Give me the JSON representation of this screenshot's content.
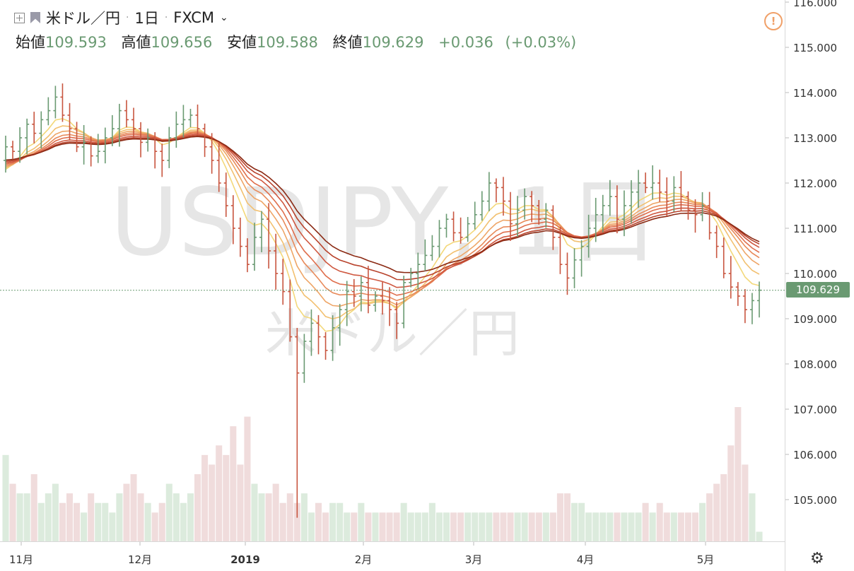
{
  "header": {
    "symbol_name": "米ドル／円",
    "interval": "1日",
    "source": "FXCM",
    "ohlc": {
      "open_label": "始値",
      "open": "109.593",
      "high_label": "高値",
      "high": "109.656",
      "low_label": "安値",
      "low": "109.588",
      "close_label": "終値",
      "close": "109.629",
      "change": "+0.036",
      "change_pct": "(+0.03%)"
    }
  },
  "watermark": {
    "line1": "USDJPY, 1日",
    "line2": "米ドル／円"
  },
  "last_price_label": "109.629",
  "colors": {
    "up": "#6a9a72",
    "down": "#c8553f",
    "ribbon_fast": "#f3d87a",
    "ribbon_slow": "#8b2a14"
  },
  "icons": {
    "add": "plus-square-icon",
    "flag": "flag-icon",
    "warning": "warning-circle-icon",
    "settings": "gear-icon",
    "dropdown": "chevron-down-icon"
  },
  "chart_data": {
    "type": "ohlc",
    "title": "USDJPY, 1日",
    "ylim": [
      104.2,
      116.0
    ],
    "y_ticks": [
      "116.000",
      "115.000",
      "114.000",
      "113.000",
      "112.000",
      "111.000",
      "110.000",
      "109.000",
      "108.000",
      "107.000",
      "106.000",
      "105.000"
    ],
    "x_ticks": [
      "11月",
      "12月",
      "2019",
      "2月",
      "3月",
      "4月",
      "5月"
    ],
    "last_price": 109.629,
    "closes": [
      112.8,
      112.7,
      113.0,
      113.3,
      113.1,
      113.4,
      113.6,
      113.9,
      113.5,
      113.2,
      112.8,
      112.9,
      112.6,
      112.7,
      113.0,
      113.2,
      113.6,
      113.4,
      113.2,
      112.9,
      113.0,
      112.7,
      112.5,
      113.0,
      113.3,
      113.4,
      113.5,
      113.2,
      112.8,
      112.5,
      112.0,
      111.5,
      111.0,
      110.6,
      110.2,
      110.8,
      111.2,
      110.5,
      110.0,
      109.6,
      108.6,
      107.8,
      108.5,
      108.9,
      108.6,
      108.3,
      108.8,
      109.2,
      109.6,
      109.5,
      109.8,
      109.3,
      109.5,
      109.4,
      109.2,
      108.9,
      109.8,
      110.0,
      110.2,
      110.4,
      110.6,
      111.0,
      111.2,
      110.9,
      110.8,
      111.1,
      111.3,
      111.6,
      112.0,
      111.9,
      111.6,
      111.1,
      111.4,
      111.7,
      111.5,
      111.2,
      111.4,
      110.8,
      110.2,
      109.9,
      110.3,
      110.6,
      111.0,
      111.3,
      111.5,
      111.7,
      111.2,
      111.5,
      111.8,
      112.0,
      111.9,
      112.0,
      111.8,
      111.6,
      111.9,
      111.7,
      111.4,
      111.3,
      111.5,
      110.9,
      110.6,
      110.0,
      109.7,
      109.5,
      109.2,
      109.4,
      109.63
    ],
    "volumes": [
      0.9,
      0.6,
      0.5,
      0.5,
      0.7,
      0.4,
      0.5,
      0.6,
      0.4,
      0.5,
      0.4,
      0.3,
      0.5,
      0.4,
      0.4,
      0.3,
      0.5,
      0.6,
      0.7,
      0.5,
      0.4,
      0.3,
      0.4,
      0.6,
      0.5,
      0.4,
      0.5,
      0.7,
      0.9,
      0.8,
      1.0,
      0.9,
      1.2,
      0.8,
      1.3,
      0.6,
      0.5,
      0.5,
      0.6,
      0.4,
      0.5,
      0.4,
      0.5,
      0.3,
      0.4,
      0.3,
      0.4,
      0.4,
      0.3,
      0.3,
      0.4,
      0.3,
      0.3,
      0.3,
      0.3,
      0.3,
      0.4,
      0.3,
      0.3,
      0.3,
      0.4,
      0.3,
      0.3,
      0.3,
      0.3,
      0.3,
      0.3,
      0.3,
      0.3,
      0.3,
      0.3,
      0.3,
      0.3,
      0.3,
      0.3,
      0.3,
      0.3,
      0.3,
      0.5,
      0.5,
      0.4,
      0.4,
      0.3,
      0.3,
      0.3,
      0.3,
      0.3,
      0.3,
      0.3,
      0.3,
      0.4,
      0.3,
      0.4,
      0.3,
      0.3,
      0.3,
      0.3,
      0.3,
      0.4,
      0.5,
      0.6,
      0.7,
      1.0,
      1.4,
      0.8,
      0.5,
      0.1
    ]
  }
}
